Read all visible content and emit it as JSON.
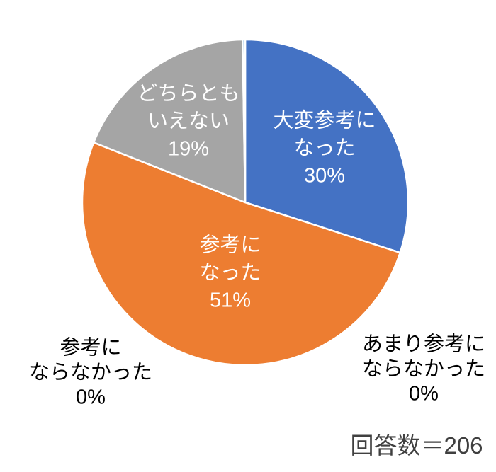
{
  "chart_data": {
    "type": "pie",
    "title": "",
    "legend": "none",
    "footnote": "回答数＝206",
    "respondents": 206,
    "slices": [
      {
        "label": "大変参考になった",
        "percent": 30,
        "color": "#4472C4",
        "draw": 30,
        "label_placement": "inside",
        "label_lines": [
          "大変参考に",
          "なった",
          "30%"
        ]
      },
      {
        "label": "参考になった",
        "percent": 51,
        "color": "#ED7D31",
        "draw": 51,
        "label_placement": "inside",
        "label_lines": [
          "参考に",
          "なった",
          "51%"
        ]
      },
      {
        "label": "どちらともいえない",
        "percent": 19,
        "color": "#A5A5A5",
        "draw": 18.75,
        "label_placement": "inside",
        "label_lines": [
          "どちらとも",
          "いえない",
          "19%"
        ]
      },
      {
        "label": "あまり参考にならなかった",
        "percent": 0,
        "color": "#FFC000",
        "draw": 0,
        "label_placement": "outside",
        "label_lines": [
          "あまり参考に",
          "ならなかった",
          "0%"
        ]
      },
      {
        "label": "参考にならなかった",
        "percent": 0,
        "color": "#5B9BD5",
        "draw": 0.25,
        "label_placement": "outside",
        "label_lines": [
          "参考に",
          "ならなかった",
          "0%"
        ]
      }
    ],
    "slice_border_color": "#FFFFFF",
    "background_color": "#FFFFFF",
    "text_color_inside": "#FFFFFF",
    "text_color_outside": "#000000",
    "footnote_color": "#404040"
  }
}
